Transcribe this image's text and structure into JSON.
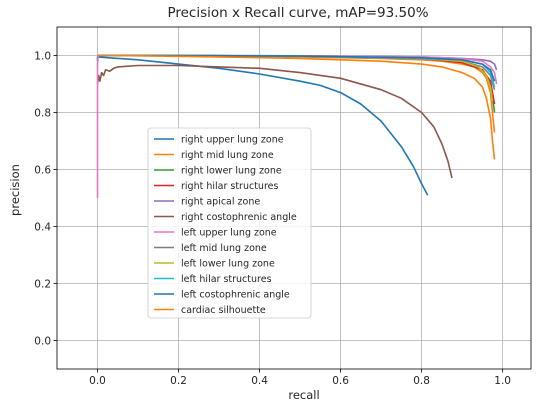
{
  "chart_data": {
    "type": "line",
    "title": "Precision x Recall curve, mAP=93.50%",
    "xlabel": "recall",
    "ylabel": "precision",
    "xlim": [
      -0.1,
      1.07
    ],
    "ylim": [
      -0.1,
      1.1
    ],
    "xticks": [
      0.0,
      0.2,
      0.4,
      0.6,
      0.8,
      1.0
    ],
    "xtick_labels": [
      "0.0",
      "0.2",
      "0.4",
      "0.6",
      "0.8",
      "1.0"
    ],
    "yticks": [
      0.0,
      0.2,
      0.4,
      0.6,
      0.8,
      1.0
    ],
    "ytick_labels": [
      "0.0",
      "0.2",
      "0.4",
      "0.6",
      "0.8",
      "1.0"
    ],
    "grid": true,
    "legend_position": "center-left",
    "series": [
      {
        "name": "right upper lung zone",
        "color": "#1f77b4",
        "x": [
          0.0,
          0.0,
          0.05,
          0.1,
          0.2,
          0.3,
          0.4,
          0.5,
          0.55,
          0.6,
          0.65,
          0.7,
          0.75,
          0.78,
          0.8,
          0.815
        ],
        "y": [
          0.98,
          0.995,
          0.99,
          0.985,
          0.97,
          0.955,
          0.935,
          0.91,
          0.895,
          0.87,
          0.83,
          0.77,
          0.68,
          0.61,
          0.55,
          0.51
        ]
      },
      {
        "name": "right mid lung zone",
        "color": "#ff7f0e",
        "x": [
          0.0,
          0.1,
          0.3,
          0.5,
          0.7,
          0.8,
          0.85,
          0.9,
          0.93,
          0.95,
          0.96,
          0.97,
          0.975,
          0.98
        ],
        "y": [
          1.0,
          1.0,
          1.0,
          0.995,
          0.99,
          0.985,
          0.98,
          0.97,
          0.96,
          0.94,
          0.92,
          0.87,
          0.8,
          0.73
        ]
      },
      {
        "name": "right lower lung zone",
        "color": "#2ca02c",
        "x": [
          0.0,
          0.2,
          0.5,
          0.8,
          0.9,
          0.94,
          0.96,
          0.97,
          0.975,
          0.98
        ],
        "y": [
          1.0,
          1.0,
          0.998,
          0.99,
          0.98,
          0.96,
          0.93,
          0.9,
          0.86,
          0.8
        ]
      },
      {
        "name": "right hilar structures",
        "color": "#d62728",
        "x": [
          0.0,
          0.2,
          0.5,
          0.8,
          0.9,
          0.95,
          0.97,
          0.98
        ],
        "y": [
          1.0,
          1.0,
          0.998,
          0.99,
          0.975,
          0.95,
          0.91,
          0.83
        ]
      },
      {
        "name": "right apical zone",
        "color": "#9467bd",
        "x": [
          0.0,
          0.2,
          0.5,
          0.8,
          0.9,
          0.95,
          0.97,
          0.98,
          0.985
        ],
        "y": [
          1.0,
          1.0,
          0.999,
          0.995,
          0.99,
          0.985,
          0.98,
          0.97,
          0.95
        ]
      },
      {
        "name": "right costophrenic angle",
        "color": "#8c564b",
        "x": [
          0.0,
          0.003,
          0.006,
          0.01,
          0.015,
          0.02,
          0.03,
          0.04,
          0.05,
          0.1,
          0.2,
          0.3,
          0.4,
          0.5,
          0.6,
          0.7,
          0.75,
          0.8,
          0.83,
          0.85,
          0.865,
          0.875
        ],
        "y": [
          0.9,
          0.93,
          0.91,
          0.94,
          0.93,
          0.95,
          0.945,
          0.955,
          0.96,
          0.965,
          0.965,
          0.96,
          0.955,
          0.94,
          0.92,
          0.88,
          0.85,
          0.8,
          0.75,
          0.69,
          0.63,
          0.57
        ]
      },
      {
        "name": "left upper lung zone",
        "color": "#e377c2",
        "x": [
          0.0,
          0.0,
          0.002,
          0.1,
          0.3,
          0.5,
          0.8,
          0.9,
          0.95,
          0.97,
          0.98,
          0.985
        ],
        "y": [
          0.5,
          0.97,
          1.0,
          1.0,
          1.0,
          0.999,
          0.995,
          0.99,
          0.98,
          0.96,
          0.94,
          0.9
        ]
      },
      {
        "name": "left mid lung zone",
        "color": "#7f7f7f",
        "x": [
          0.0,
          0.2,
          0.5,
          0.8,
          0.9,
          0.95,
          0.97,
          0.98
        ],
        "y": [
          1.0,
          1.0,
          0.998,
          0.99,
          0.98,
          0.96,
          0.93,
          0.88
        ]
      },
      {
        "name": "left lower lung zone",
        "color": "#bcbd22",
        "x": [
          0.0,
          0.2,
          0.5,
          0.8,
          0.9,
          0.94,
          0.96,
          0.97,
          0.975
        ],
        "y": [
          1.0,
          1.0,
          0.998,
          0.99,
          0.98,
          0.96,
          0.93,
          0.89,
          0.84
        ]
      },
      {
        "name": "left hilar structures",
        "color": "#17becf",
        "x": [
          0.0,
          0.2,
          0.5,
          0.8,
          0.9,
          0.95,
          0.97,
          0.98
        ],
        "y": [
          1.0,
          1.0,
          0.998,
          0.99,
          0.985,
          0.97,
          0.94,
          0.89
        ]
      },
      {
        "name": "left costophrenic angle",
        "color": "#1f77b4",
        "x": [
          0.0,
          0.2,
          0.5,
          0.8,
          0.9,
          0.95,
          0.97,
          0.98
        ],
        "y": [
          1.0,
          1.0,
          0.998,
          0.992,
          0.985,
          0.97,
          0.95,
          0.91
        ]
      },
      {
        "name": "cardiac silhouette",
        "color": "#ff7f0e",
        "x": [
          0.0,
          0.1,
          0.3,
          0.5,
          0.7,
          0.8,
          0.85,
          0.9,
          0.93,
          0.95,
          0.96,
          0.97,
          0.975,
          0.98
        ],
        "y": [
          1.0,
          0.999,
          0.995,
          0.99,
          0.98,
          0.97,
          0.96,
          0.94,
          0.92,
          0.89,
          0.85,
          0.78,
          0.7,
          0.635
        ]
      }
    ]
  }
}
